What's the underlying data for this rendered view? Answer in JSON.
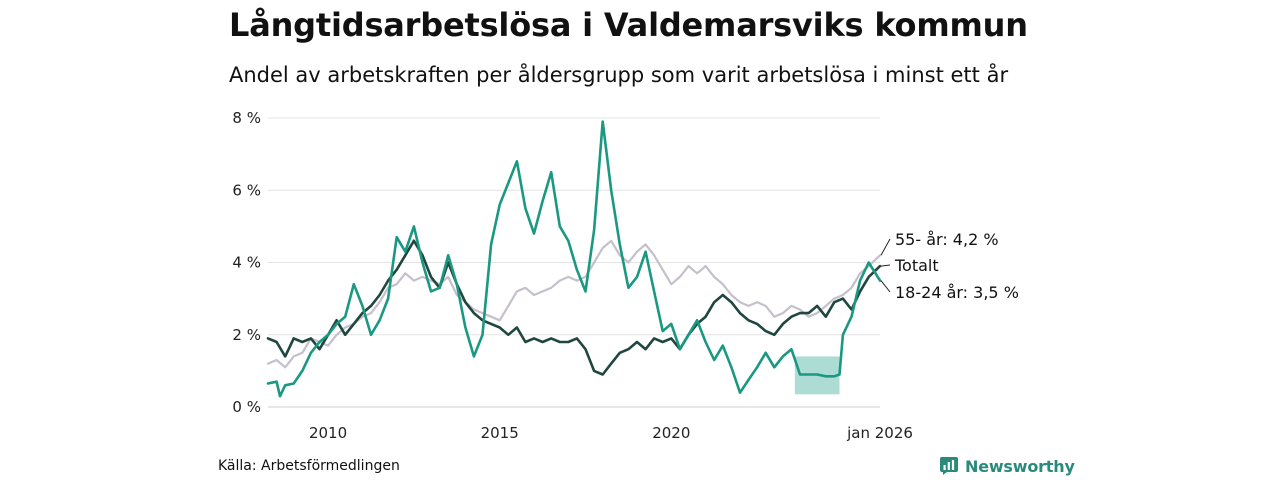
{
  "title": "Långtidsarbetslösa i Valdemarsviks kommun",
  "subtitle": "Andel av arbetskraften per åldersgrupp som varit arbetslösa i minst ett år",
  "source": "Källa: Arbetsförmedlingen",
  "brand": "Newsworthy",
  "colors": {
    "youth": "#1a9882",
    "total": "#20473f",
    "senior": "#c5c0cc",
    "band": "#9fd6cc",
    "brand": "#2a8a7c"
  },
  "chart_data": {
    "type": "line",
    "x_domain": [
      2008.25,
      2026.08
    ],
    "ylim": [
      0,
      8
    ],
    "y_ticks": [
      0,
      2,
      4,
      6,
      8
    ],
    "y_tick_labels": [
      "0 %",
      "2 %",
      "4 %",
      "6 %",
      "8 %"
    ],
    "x_ticks": [
      2010,
      2015,
      2020,
      2026.08
    ],
    "x_tick_labels": [
      "2010",
      "2015",
      "2020",
      "jan 2026"
    ],
    "end_labels": [
      "55- år: 4,2 %",
      "Totalt",
      "18-24 år: 3,5 %"
    ],
    "uncertainty_band": {
      "series": "18-24 år",
      "x": [
        2023.6,
        2024.9
      ],
      "y": [
        0.35,
        1.4
      ]
    },
    "series": [
      {
        "name": "55- år",
        "key": "senior",
        "values": [
          [
            2008.25,
            1.2
          ],
          [
            2008.5,
            1.3
          ],
          [
            2008.75,
            1.1
          ],
          [
            2009,
            1.4
          ],
          [
            2009.25,
            1.5
          ],
          [
            2009.5,
            1.9
          ],
          [
            2009.75,
            1.8
          ],
          [
            2010,
            1.7
          ],
          [
            2010.25,
            2.0
          ],
          [
            2010.5,
            2.2
          ],
          [
            2010.75,
            2.3
          ],
          [
            2011,
            2.5
          ],
          [
            2011.25,
            2.6
          ],
          [
            2011.5,
            2.9
          ],
          [
            2011.75,
            3.3
          ],
          [
            2012,
            3.4
          ],
          [
            2012.25,
            3.7
          ],
          [
            2012.5,
            3.5
          ],
          [
            2012.75,
            3.6
          ],
          [
            2013,
            3.5
          ],
          [
            2013.25,
            3.4
          ],
          [
            2013.5,
            3.6
          ],
          [
            2013.75,
            3.1
          ],
          [
            2014,
            2.9
          ],
          [
            2014.25,
            2.7
          ],
          [
            2014.5,
            2.6
          ],
          [
            2014.75,
            2.5
          ],
          [
            2015,
            2.4
          ],
          [
            2015.25,
            2.8
          ],
          [
            2015.5,
            3.2
          ],
          [
            2015.75,
            3.3
          ],
          [
            2016,
            3.1
          ],
          [
            2016.25,
            3.2
          ],
          [
            2016.5,
            3.3
          ],
          [
            2016.75,
            3.5
          ],
          [
            2017,
            3.6
          ],
          [
            2017.25,
            3.5
          ],
          [
            2017.5,
            3.6
          ],
          [
            2017.75,
            4.0
          ],
          [
            2018,
            4.4
          ],
          [
            2018.25,
            4.6
          ],
          [
            2018.5,
            4.2
          ],
          [
            2018.75,
            4.0
          ],
          [
            2019,
            4.3
          ],
          [
            2019.25,
            4.5
          ],
          [
            2019.5,
            4.2
          ],
          [
            2019.75,
            3.8
          ],
          [
            2020,
            3.4
          ],
          [
            2020.25,
            3.6
          ],
          [
            2020.5,
            3.9
          ],
          [
            2020.75,
            3.7
          ],
          [
            2021,
            3.9
          ],
          [
            2021.25,
            3.6
          ],
          [
            2021.5,
            3.4
          ],
          [
            2021.75,
            3.1
          ],
          [
            2022,
            2.9
          ],
          [
            2022.25,
            2.8
          ],
          [
            2022.5,
            2.9
          ],
          [
            2022.75,
            2.8
          ],
          [
            2023,
            2.5
          ],
          [
            2023.25,
            2.6
          ],
          [
            2023.5,
            2.8
          ],
          [
            2023.75,
            2.7
          ],
          [
            2024,
            2.5
          ],
          [
            2024.25,
            2.6
          ],
          [
            2024.5,
            2.8
          ],
          [
            2024.75,
            3.0
          ],
          [
            2025,
            3.1
          ],
          [
            2025.25,
            3.3
          ],
          [
            2025.5,
            3.7
          ],
          [
            2025.75,
            3.9
          ],
          [
            2026.08,
            4.2
          ]
        ]
      },
      {
        "name": "Totalt",
        "key": "total",
        "values": [
          [
            2008.25,
            1.9
          ],
          [
            2008.5,
            1.8
          ],
          [
            2008.75,
            1.4
          ],
          [
            2009,
            1.9
          ],
          [
            2009.25,
            1.8
          ],
          [
            2009.5,
            1.9
          ],
          [
            2009.75,
            1.6
          ],
          [
            2010,
            2.0
          ],
          [
            2010.25,
            2.4
          ],
          [
            2010.5,
            2.0
          ],
          [
            2010.75,
            2.3
          ],
          [
            2011,
            2.6
          ],
          [
            2011.25,
            2.8
          ],
          [
            2011.5,
            3.1
          ],
          [
            2011.75,
            3.5
          ],
          [
            2012,
            3.8
          ],
          [
            2012.25,
            4.2
          ],
          [
            2012.5,
            4.6
          ],
          [
            2012.75,
            4.2
          ],
          [
            2013,
            3.6
          ],
          [
            2013.25,
            3.3
          ],
          [
            2013.5,
            4.0
          ],
          [
            2013.75,
            3.4
          ],
          [
            2014,
            2.9
          ],
          [
            2014.25,
            2.6
          ],
          [
            2014.5,
            2.4
          ],
          [
            2014.75,
            2.3
          ],
          [
            2015,
            2.2
          ],
          [
            2015.25,
            2.0
          ],
          [
            2015.5,
            2.2
          ],
          [
            2015.75,
            1.8
          ],
          [
            2016,
            1.9
          ],
          [
            2016.25,
            1.8
          ],
          [
            2016.5,
            1.9
          ],
          [
            2016.75,
            1.8
          ],
          [
            2017,
            1.8
          ],
          [
            2017.25,
            1.9
          ],
          [
            2017.5,
            1.6
          ],
          [
            2017.75,
            1.0
          ],
          [
            2018,
            0.9
          ],
          [
            2018.25,
            1.2
          ],
          [
            2018.5,
            1.5
          ],
          [
            2018.75,
            1.6
          ],
          [
            2019,
            1.8
          ],
          [
            2019.25,
            1.6
          ],
          [
            2019.5,
            1.9
          ],
          [
            2019.75,
            1.8
          ],
          [
            2020,
            1.9
          ],
          [
            2020.25,
            1.6
          ],
          [
            2020.5,
            2.0
          ],
          [
            2020.75,
            2.3
          ],
          [
            2021,
            2.5
          ],
          [
            2021.25,
            2.9
          ],
          [
            2021.5,
            3.1
          ],
          [
            2021.75,
            2.9
          ],
          [
            2022,
            2.6
          ],
          [
            2022.25,
            2.4
          ],
          [
            2022.5,
            2.3
          ],
          [
            2022.75,
            2.1
          ],
          [
            2023,
            2.0
          ],
          [
            2023.25,
            2.3
          ],
          [
            2023.5,
            2.5
          ],
          [
            2023.75,
            2.6
          ],
          [
            2024,
            2.6
          ],
          [
            2024.25,
            2.8
          ],
          [
            2024.5,
            2.5
          ],
          [
            2024.75,
            2.9
          ],
          [
            2025,
            3.0
          ],
          [
            2025.25,
            2.7
          ],
          [
            2025.5,
            3.2
          ],
          [
            2025.75,
            3.6
          ],
          [
            2026.08,
            3.9
          ]
        ]
      },
      {
        "name": "18-24 år",
        "key": "youth",
        "values": [
          [
            2008.25,
            0.65
          ],
          [
            2008.5,
            0.7
          ],
          [
            2008.6,
            0.3
          ],
          [
            2008.75,
            0.6
          ],
          [
            2009,
            0.65
          ],
          [
            2009.25,
            1.0
          ],
          [
            2009.5,
            1.5
          ],
          [
            2009.75,
            1.8
          ],
          [
            2010,
            2.0
          ],
          [
            2010.25,
            2.3
          ],
          [
            2010.5,
            2.5
          ],
          [
            2010.75,
            3.4
          ],
          [
            2011,
            2.8
          ],
          [
            2011.25,
            2.0
          ],
          [
            2011.5,
            2.4
          ],
          [
            2011.75,
            3.0
          ],
          [
            2012,
            4.7
          ],
          [
            2012.25,
            4.3
          ],
          [
            2012.5,
            5.0
          ],
          [
            2012.75,
            4.0
          ],
          [
            2013,
            3.2
          ],
          [
            2013.25,
            3.3
          ],
          [
            2013.5,
            4.2
          ],
          [
            2013.75,
            3.4
          ],
          [
            2014,
            2.2
          ],
          [
            2014.25,
            1.4
          ],
          [
            2014.5,
            2.0
          ],
          [
            2014.75,
            4.5
          ],
          [
            2015,
            5.6
          ],
          [
            2015.25,
            6.2
          ],
          [
            2015.5,
            6.8
          ],
          [
            2015.75,
            5.5
          ],
          [
            2016,
            4.8
          ],
          [
            2016.25,
            5.7
          ],
          [
            2016.5,
            6.5
          ],
          [
            2016.75,
            5.0
          ],
          [
            2017,
            4.6
          ],
          [
            2017.25,
            3.8
          ],
          [
            2017.5,
            3.2
          ],
          [
            2017.75,
            4.9
          ],
          [
            2018,
            7.9
          ],
          [
            2018.25,
            6.0
          ],
          [
            2018.5,
            4.5
          ],
          [
            2018.75,
            3.3
          ],
          [
            2019,
            3.6
          ],
          [
            2019.25,
            4.3
          ],
          [
            2019.5,
            3.2
          ],
          [
            2019.75,
            2.1
          ],
          [
            2020,
            2.3
          ],
          [
            2020.25,
            1.6
          ],
          [
            2020.5,
            2.0
          ],
          [
            2020.75,
            2.4
          ],
          [
            2021,
            1.8
          ],
          [
            2021.25,
            1.3
          ],
          [
            2021.5,
            1.7
          ],
          [
            2021.75,
            1.1
          ],
          [
            2022,
            0.4
          ],
          [
            2022.25,
            0.75
          ],
          [
            2022.5,
            1.1
          ],
          [
            2022.75,
            1.5
          ],
          [
            2023,
            1.1
          ],
          [
            2023.25,
            1.4
          ],
          [
            2023.5,
            1.6
          ],
          [
            2023.75,
            0.9
          ],
          [
            2024,
            0.9
          ],
          [
            2024.25,
            0.9
          ],
          [
            2024.5,
            0.85
          ],
          [
            2024.75,
            0.85
          ],
          [
            2024.9,
            0.9
          ],
          [
            2025,
            2.0
          ],
          [
            2025.25,
            2.5
          ],
          [
            2025.5,
            3.5
          ],
          [
            2025.75,
            4.0
          ],
          [
            2026.08,
            3.5
          ]
        ]
      }
    ]
  }
}
